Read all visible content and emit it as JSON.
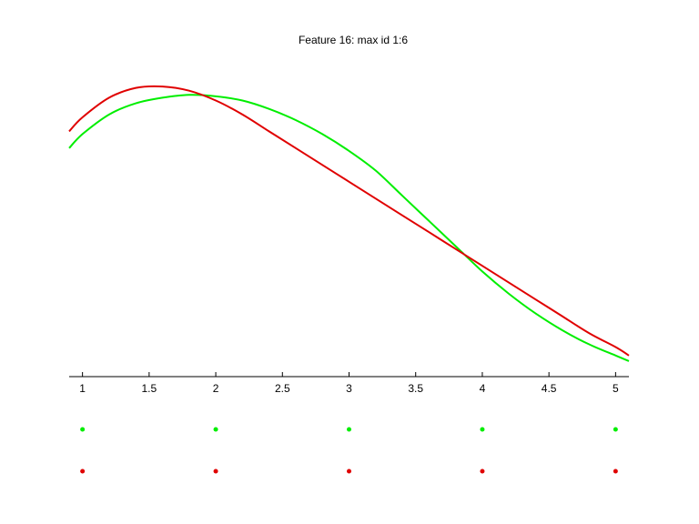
{
  "figure": {
    "title": "Feature 16: max id 1:6"
  },
  "chart_data": {
    "type": "line",
    "title": "Feature 16: max id 1:6",
    "xlabel": "",
    "ylabel": "",
    "xlim": [
      0.9,
      5.1
    ],
    "ylim": [
      0,
      1
    ],
    "grid": false,
    "y_axis_visible": false,
    "x_ticks": [
      1,
      1.5,
      2,
      2.5,
      3,
      3.5,
      4,
      4.5,
      5
    ],
    "x_tick_labels": [
      "1",
      "1.5",
      "2",
      "2.5",
      "3",
      "3.5",
      "4",
      "4.5",
      "5"
    ],
    "colors": {
      "green": "#00ee00",
      "red": "#e00000"
    },
    "series": [
      {
        "color": "#00ee00",
        "x": [
          0.9,
          1.0,
          1.2,
          1.4,
          1.6,
          1.8,
          2.0,
          2.2,
          2.4,
          2.6,
          2.8,
          3.0,
          3.2,
          3.4,
          3.6,
          3.8,
          4.0,
          4.2,
          4.4,
          4.6,
          4.8,
          5.0,
          5.1
        ],
        "y": [
          0.77,
          0.82,
          0.89,
          0.93,
          0.95,
          0.96,
          0.955,
          0.94,
          0.91,
          0.87,
          0.82,
          0.76,
          0.69,
          0.6,
          0.51,
          0.42,
          0.33,
          0.25,
          0.18,
          0.12,
          0.07,
          0.03,
          0.01
        ]
      },
      {
        "color": "#e00000",
        "x": [
          0.9,
          1.0,
          1.2,
          1.4,
          1.6,
          1.8,
          2.0,
          2.2,
          2.4,
          2.6,
          2.8,
          3.0,
          3.2,
          3.4,
          3.6,
          3.8,
          4.0,
          4.2,
          4.4,
          4.6,
          4.8,
          5.0,
          5.1
        ],
        "y": [
          0.83,
          0.88,
          0.95,
          0.985,
          0.99,
          0.975,
          0.94,
          0.89,
          0.83,
          0.77,
          0.71,
          0.65,
          0.59,
          0.53,
          0.47,
          0.41,
          0.35,
          0.29,
          0.23,
          0.17,
          0.11,
          0.06,
          0.03
        ]
      }
    ],
    "marker_rows": [
      {
        "color": "#00ee00",
        "x": [
          1,
          2,
          3,
          4,
          5
        ]
      },
      {
        "color": "#e00000",
        "x": [
          1,
          2,
          3,
          4,
          5
        ]
      }
    ]
  }
}
